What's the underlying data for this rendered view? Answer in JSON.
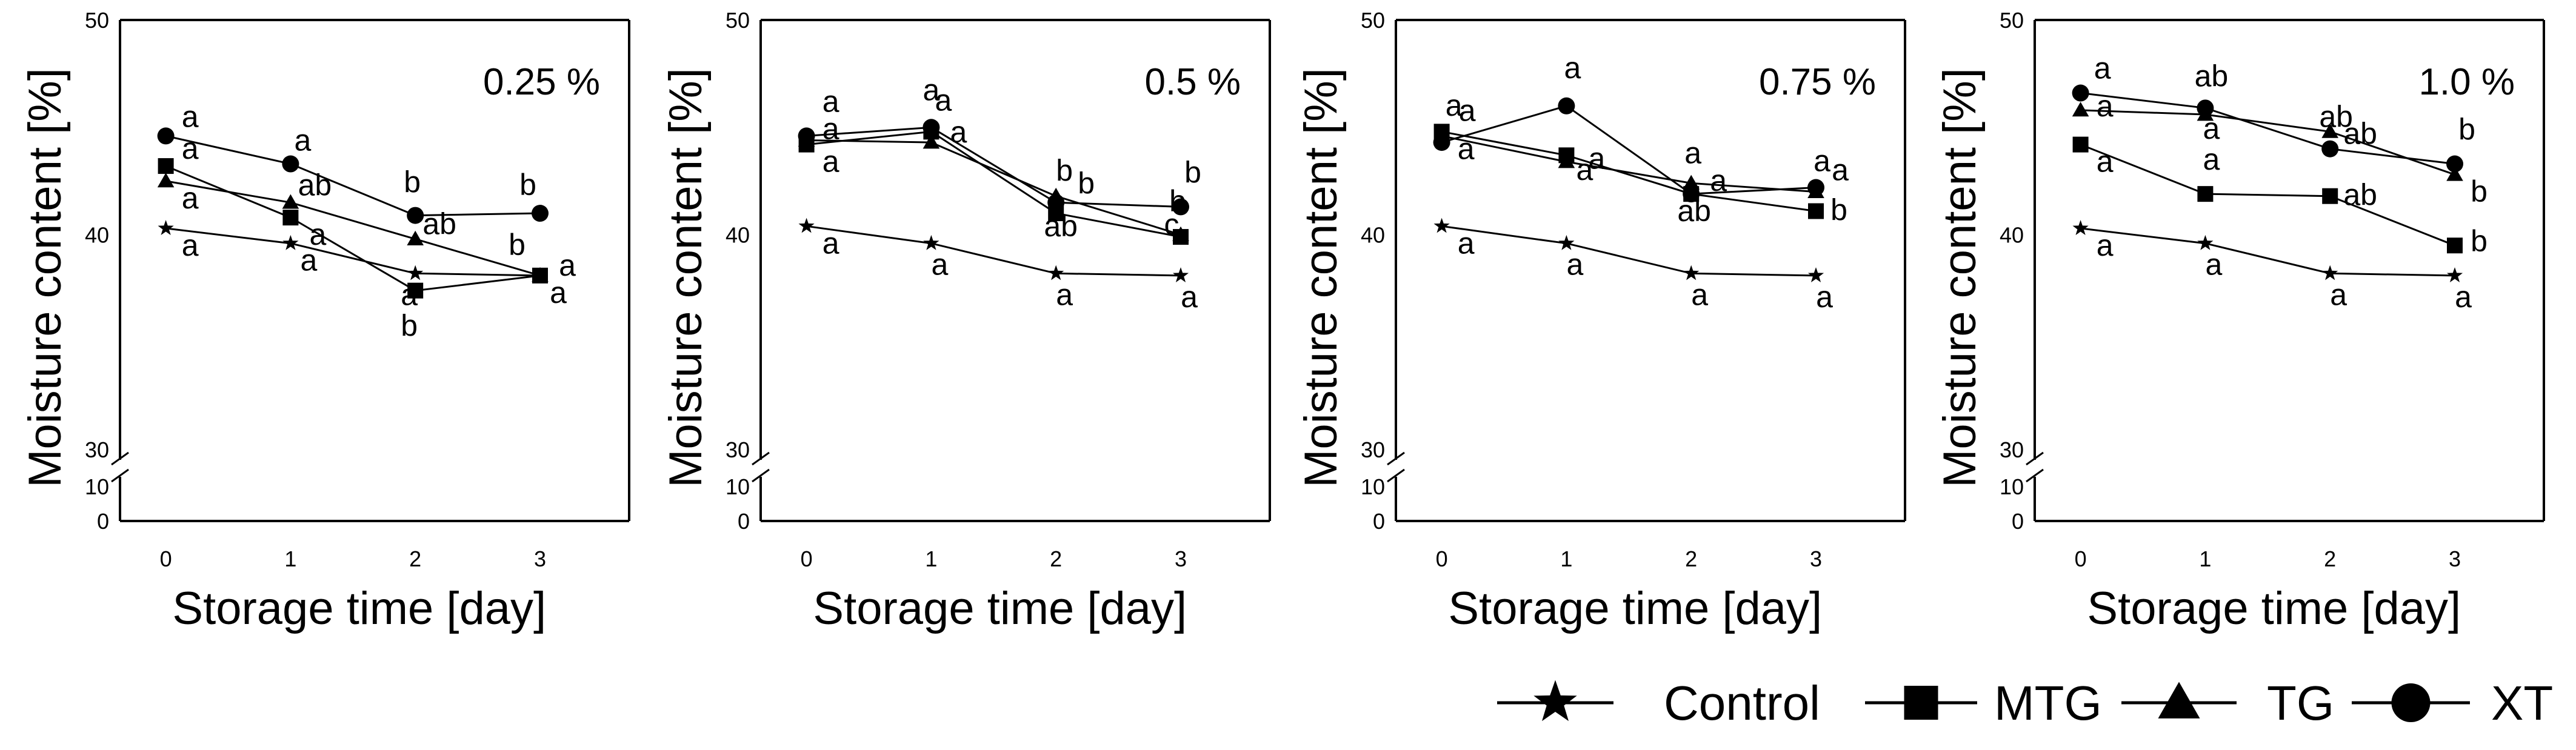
{
  "chart_data": [
    {
      "type": "line",
      "title": "0.25 %",
      "xlabel": "Storage time [day]",
      "ylabel": "Moisture content [%]",
      "x": [
        0,
        1,
        2,
        3
      ],
      "xticks": [
        "0",
        "1",
        "2",
        "3"
      ],
      "yticks": [
        "0",
        "10",
        "30",
        "40",
        "50"
      ],
      "axis_break": {
        "lower": [
          0,
          10
        ],
        "upper_start": 30
      },
      "ylim": [
        30,
        50
      ],
      "grid": false,
      "series": [
        {
          "name": "Control",
          "marker": "star",
          "values": [
            40.3,
            39.6,
            38.2,
            38.1
          ],
          "letters": [
            "a",
            "a",
            "a",
            "a"
          ]
        },
        {
          "name": "MTG",
          "marker": "square",
          "values": [
            43.2,
            40.8,
            37.4,
            38.1
          ],
          "letters": [
            "a",
            "a",
            "b",
            "a"
          ]
        },
        {
          "name": "TG",
          "marker": "triangle",
          "values": [
            42.5,
            41.5,
            39.8,
            38.1
          ],
          "letters": [
            "a",
            "ab",
            "ab",
            "b"
          ]
        },
        {
          "name": "XT",
          "marker": "circle",
          "values": [
            44.6,
            43.3,
            40.9,
            41.0
          ],
          "letters": [
            "a",
            "a",
            "b",
            "b"
          ]
        }
      ]
    },
    {
      "type": "line",
      "title": "0.5 %",
      "xlabel": "Storage time [day]",
      "ylabel": "Moisture content [%]",
      "x": [
        0,
        1,
        2,
        3
      ],
      "xticks": [
        "0",
        "1",
        "2",
        "3"
      ],
      "yticks": [
        "0",
        "10",
        "30",
        "40",
        "50"
      ],
      "axis_break": {
        "lower": [
          0,
          10
        ],
        "upper_start": 30
      },
      "ylim": [
        30,
        50
      ],
      "grid": false,
      "series": [
        {
          "name": "Control",
          "marker": "star",
          "values": [
            40.4,
            39.6,
            38.2,
            38.1
          ],
          "letters": [
            "a",
            "a",
            "a",
            "a"
          ]
        },
        {
          "name": "MTG",
          "marker": "square",
          "values": [
            44.2,
            44.8,
            41.0,
            39.9
          ],
          "letters": [
            "a",
            "a",
            "ab",
            "b"
          ]
        },
        {
          "name": "TG",
          "marker": "triangle",
          "values": [
            44.4,
            44.3,
            41.8,
            40.0
          ],
          "letters": [
            "a",
            "a",
            "b",
            "c"
          ]
        },
        {
          "name": "XT",
          "marker": "circle",
          "values": [
            44.6,
            45.0,
            41.5,
            41.3
          ],
          "letters": [
            "a",
            "a",
            "b",
            "b"
          ]
        }
      ]
    },
    {
      "type": "line",
      "title": "0.75 %",
      "xlabel": "Storage time [day]",
      "ylabel": "Moisture content [%]",
      "x": [
        0,
        1,
        2,
        3
      ],
      "xticks": [
        "0",
        "1",
        "2",
        "3"
      ],
      "yticks": [
        "0",
        "10",
        "30",
        "40",
        "50"
      ],
      "axis_break": {
        "lower": [
          0,
          10
        ],
        "upper_start": 30
      },
      "ylim": [
        30,
        50
      ],
      "grid": false,
      "series": [
        {
          "name": "Control",
          "marker": "star",
          "values": [
            40.4,
            39.6,
            38.2,
            38.1
          ],
          "letters": [
            "a",
            "a",
            "a",
            "a"
          ]
        },
        {
          "name": "MTG",
          "marker": "square",
          "values": [
            44.8,
            43.7,
            41.9,
            41.1
          ],
          "letters": [
            "a",
            "a",
            "ab",
            "b"
          ]
        },
        {
          "name": "TG",
          "marker": "triangle",
          "values": [
            44.6,
            43.4,
            42.4,
            42.0
          ],
          "letters": [
            "a",
            "a",
            "a",
            "a"
          ]
        },
        {
          "name": "XT",
          "marker": "circle",
          "values": [
            44.3,
            46.0,
            41.9,
            42.2
          ],
          "letters": [
            "a",
            "a",
            "a",
            "a"
          ]
        }
      ]
    },
    {
      "type": "line",
      "title": "1.0 %",
      "xlabel": "Storage time [day]",
      "ylabel": "Moisture content [%]",
      "x": [
        0,
        1,
        2,
        3
      ],
      "xticks": [
        "0",
        "1",
        "2",
        "3"
      ],
      "yticks": [
        "0",
        "10",
        "30",
        "40",
        "50"
      ],
      "axis_break": {
        "lower": [
          0,
          10
        ],
        "upper_start": 30
      },
      "ylim": [
        30,
        50
      ],
      "grid": false,
      "series": [
        {
          "name": "Control",
          "marker": "star",
          "values": [
            40.3,
            39.6,
            38.2,
            38.1
          ],
          "letters": [
            "a",
            "a",
            "a",
            "a"
          ]
        },
        {
          "name": "MTG",
          "marker": "square",
          "values": [
            44.2,
            41.9,
            41.8,
            39.5
          ],
          "letters": [
            "a",
            "a",
            "ab",
            "b"
          ]
        },
        {
          "name": "TG",
          "marker": "triangle",
          "values": [
            45.8,
            45.6,
            44.8,
            42.8
          ],
          "letters": [
            "a",
            "a",
            "ab",
            "b"
          ]
        },
        {
          "name": "XT",
          "marker": "circle",
          "values": [
            46.6,
            45.9,
            44.0,
            43.3
          ],
          "letters": [
            "a",
            "ab",
            "ab",
            "b"
          ]
        }
      ]
    }
  ],
  "legend": {
    "items": [
      {
        "name": "Control",
        "marker": "star"
      },
      {
        "name": "MTG",
        "marker": "square"
      },
      {
        "name": "TG",
        "marker": "triangle"
      },
      {
        "name": "XT",
        "marker": "circle"
      }
    ]
  }
}
